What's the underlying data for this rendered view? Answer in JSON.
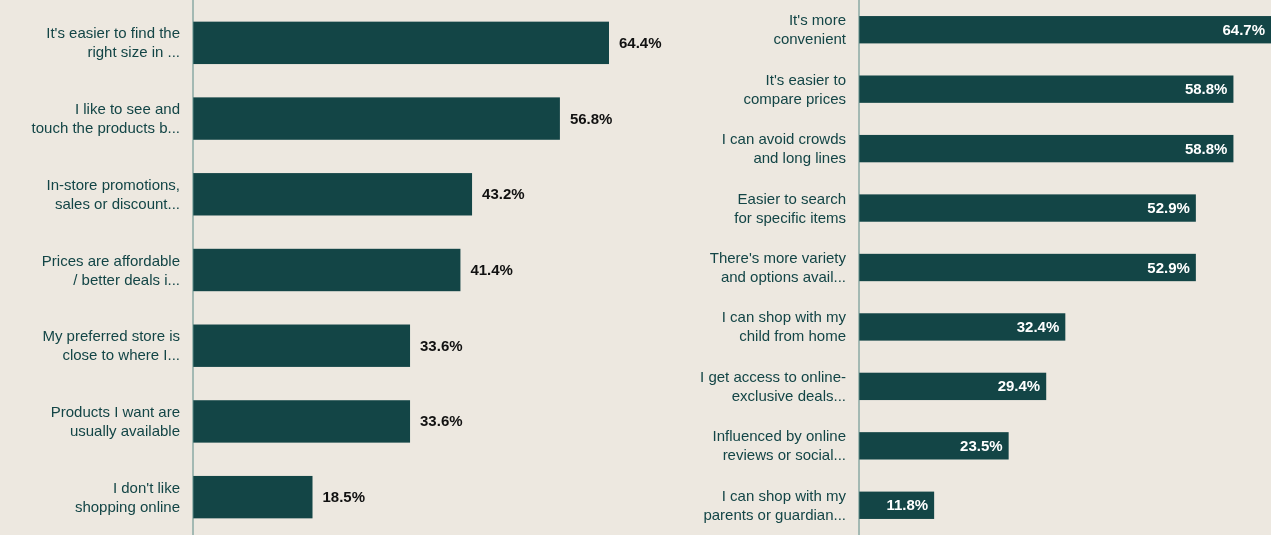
{
  "chart_data": [
    {
      "type": "bar",
      "orientation": "horizontal",
      "color": "#134546",
      "value_labels": [
        "64.4%",
        "56.8%",
        "43.2%",
        "41.4%",
        "33.6%",
        "33.6%",
        "18.5%"
      ],
      "categories": [
        "It's easier to find the\nright size in ...",
        "I like to see and\ntouch the products b...",
        "In-store promotions,\nsales or discount...",
        "Prices are affordable\n/ better deals i...",
        "My preferred store is\nclose to where I...",
        "Products I want are\nusually available",
        "I don't like\nshopping online"
      ],
      "values": [
        64.4,
        56.8,
        43.2,
        41.4,
        33.6,
        33.6,
        18.5
      ]
    },
    {
      "type": "bar",
      "orientation": "horizontal",
      "color": "#134546",
      "value_labels": [
        "64.7%",
        "58.8%",
        "58.8%",
        "52.9%",
        "52.9%",
        "32.4%",
        "29.4%",
        "23.5%",
        "11.8%"
      ],
      "categories": [
        "It's more\nconvenient",
        "It's easier to\ncompare prices",
        "I can avoid crowds\nand long lines",
        "Easier to search\nfor specific items",
        "There's more variety\nand options avail...",
        "I can shop with my\nchild from home",
        "I get access to online-\nexclusive deals...",
        "Influenced by online\nreviews or social...",
        "I can shop with my\nparents or guardian..."
      ],
      "values": [
        64.7,
        58.8,
        58.8,
        52.9,
        52.9,
        32.4,
        29.4,
        23.5,
        11.8
      ]
    }
  ]
}
